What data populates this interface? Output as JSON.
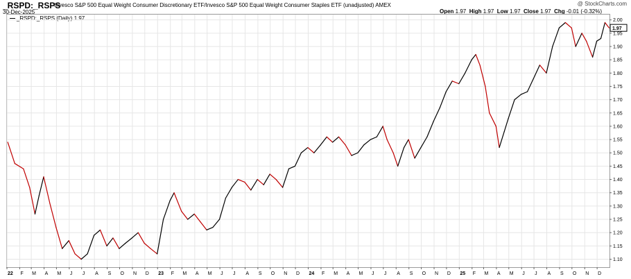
{
  "header": {
    "symbol": "_RSPD:_RSPS",
    "description": "Invesco S&P 500 Equal Weight Consumer Discretionary ETF/Invesco S&P 500 Equal Weight Consumer Staples ETF (unadjusted)  AMEX",
    "date": "30-Dec-2025",
    "watermark": "@ StockCharts.com",
    "open_label": "Open",
    "open": "1.97",
    "high_label": "High",
    "high": "1.97",
    "low_label": "Low",
    "low": "1.97",
    "close_label": "Close",
    "close": "1.97",
    "chg_label": "Chg",
    "chg": "-0.01 (-0.32%)"
  },
  "legend": {
    "text": "_RSPD:_RSPS (Daily) 1.97"
  },
  "chart_data": {
    "type": "line",
    "series": [
      {
        "name": "_RSPD:_RSPS (Daily)",
        "points": [
          [
            "2022-01-03",
            1.54
          ],
          [
            "2022-01-20",
            1.46
          ],
          [
            "2022-02-10",
            1.44
          ],
          [
            "2022-02-25",
            1.37
          ],
          [
            "2022-03-10",
            1.27
          ],
          [
            "2022-03-20",
            1.34
          ],
          [
            "2022-03-31",
            1.41
          ],
          [
            "2022-04-15",
            1.31
          ],
          [
            "2022-04-30",
            1.22
          ],
          [
            "2022-05-15",
            1.14
          ],
          [
            "2022-05-31",
            1.17
          ],
          [
            "2022-06-15",
            1.12
          ],
          [
            "2022-06-30",
            1.1
          ],
          [
            "2022-07-15",
            1.12
          ],
          [
            "2022-07-31",
            1.19
          ],
          [
            "2022-08-15",
            1.21
          ],
          [
            "2022-08-31",
            1.15
          ],
          [
            "2022-09-15",
            1.18
          ],
          [
            "2022-09-30",
            1.14
          ],
          [
            "2022-10-15",
            1.16
          ],
          [
            "2022-10-31",
            1.18
          ],
          [
            "2022-11-15",
            1.2
          ],
          [
            "2022-11-30",
            1.16
          ],
          [
            "2022-12-15",
            1.14
          ],
          [
            "2022-12-31",
            1.12
          ],
          [
            "2023-01-15",
            1.25
          ],
          [
            "2023-01-31",
            1.32
          ],
          [
            "2023-02-10",
            1.35
          ],
          [
            "2023-02-28",
            1.28
          ],
          [
            "2023-03-15",
            1.25
          ],
          [
            "2023-03-31",
            1.27
          ],
          [
            "2023-04-15",
            1.24
          ],
          [
            "2023-04-30",
            1.21
          ],
          [
            "2023-05-15",
            1.22
          ],
          [
            "2023-05-31",
            1.25
          ],
          [
            "2023-06-15",
            1.33
          ],
          [
            "2023-06-30",
            1.37
          ],
          [
            "2023-07-15",
            1.4
          ],
          [
            "2023-07-31",
            1.39
          ],
          [
            "2023-08-15",
            1.36
          ],
          [
            "2023-08-31",
            1.4
          ],
          [
            "2023-09-15",
            1.38
          ],
          [
            "2023-09-30",
            1.42
          ],
          [
            "2023-10-15",
            1.4
          ],
          [
            "2023-10-31",
            1.37
          ],
          [
            "2023-11-15",
            1.44
          ],
          [
            "2023-11-30",
            1.45
          ],
          [
            "2023-12-15",
            1.5
          ],
          [
            "2023-12-31",
            1.52
          ],
          [
            "2024-01-15",
            1.5
          ],
          [
            "2024-01-31",
            1.53
          ],
          [
            "2024-02-15",
            1.56
          ],
          [
            "2024-02-29",
            1.54
          ],
          [
            "2024-03-15",
            1.56
          ],
          [
            "2024-03-31",
            1.53
          ],
          [
            "2024-04-15",
            1.49
          ],
          [
            "2024-04-30",
            1.5
          ],
          [
            "2024-05-15",
            1.53
          ],
          [
            "2024-05-31",
            1.55
          ],
          [
            "2024-06-15",
            1.56
          ],
          [
            "2024-06-30",
            1.6
          ],
          [
            "2024-07-10",
            1.55
          ],
          [
            "2024-07-25",
            1.5
          ],
          [
            "2024-08-05",
            1.45
          ],
          [
            "2024-08-20",
            1.52
          ],
          [
            "2024-08-31",
            1.55
          ],
          [
            "2024-09-15",
            1.48
          ],
          [
            "2024-09-30",
            1.52
          ],
          [
            "2024-10-15",
            1.56
          ],
          [
            "2024-10-31",
            1.62
          ],
          [
            "2024-11-15",
            1.67
          ],
          [
            "2024-11-30",
            1.73
          ],
          [
            "2024-12-15",
            1.77
          ],
          [
            "2024-12-31",
            1.76
          ],
          [
            "2025-01-15",
            1.8
          ],
          [
            "2025-01-31",
            1.85
          ],
          [
            "2025-02-10",
            1.87
          ],
          [
            "2025-02-20",
            1.83
          ],
          [
            "2025-03-05",
            1.75
          ],
          [
            "2025-03-15",
            1.65
          ],
          [
            "2025-03-31",
            1.6
          ],
          [
            "2025-04-08",
            1.52
          ],
          [
            "2025-04-20",
            1.58
          ],
          [
            "2025-04-30",
            1.63
          ],
          [
            "2025-05-15",
            1.7
          ],
          [
            "2025-05-31",
            1.72
          ],
          [
            "2025-06-15",
            1.73
          ],
          [
            "2025-06-30",
            1.78
          ],
          [
            "2025-07-15",
            1.83
          ],
          [
            "2025-07-31",
            1.8
          ],
          [
            "2025-08-15",
            1.9
          ],
          [
            "2025-08-31",
            1.97
          ],
          [
            "2025-09-15",
            1.99
          ],
          [
            "2025-09-30",
            1.97
          ],
          [
            "2025-10-10",
            1.9
          ],
          [
            "2025-10-25",
            1.95
          ],
          [
            "2025-11-05",
            1.92
          ],
          [
            "2025-11-20",
            1.86
          ],
          [
            "2025-11-30",
            1.92
          ],
          [
            "2025-12-10",
            1.93
          ],
          [
            "2025-12-20",
            1.99
          ],
          [
            "2025-12-30",
            1.97
          ]
        ]
      }
    ],
    "y_ticks": [
      "1.10",
      "1.15",
      "1.20",
      "1.25",
      "1.30",
      "1.35",
      "1.40",
      "1.45",
      "1.50",
      "1.55",
      "1.60",
      "1.65",
      "1.70",
      "1.75",
      "1.80",
      "1.85",
      "1.90",
      "1.95",
      "2.00"
    ],
    "ylim": [
      1.07,
      2.02
    ],
    "x_ticks": [
      {
        "label": "22",
        "date": "2022-01-01",
        "bold": true
      },
      {
        "label": "F",
        "date": "2022-02-01"
      },
      {
        "label": "M",
        "date": "2022-03-01"
      },
      {
        "label": "A",
        "date": "2022-04-01"
      },
      {
        "label": "M",
        "date": "2022-05-01"
      },
      {
        "label": "J",
        "date": "2022-06-01"
      },
      {
        "label": "J",
        "date": "2022-07-01"
      },
      {
        "label": "A",
        "date": "2022-08-01"
      },
      {
        "label": "S",
        "date": "2022-09-01"
      },
      {
        "label": "O",
        "date": "2022-10-01"
      },
      {
        "label": "N",
        "date": "2022-11-01"
      },
      {
        "label": "D",
        "date": "2022-12-01"
      },
      {
        "label": "23",
        "date": "2023-01-01",
        "bold": true
      },
      {
        "label": "F",
        "date": "2023-02-01"
      },
      {
        "label": "M",
        "date": "2023-03-01"
      },
      {
        "label": "A",
        "date": "2023-04-01"
      },
      {
        "label": "M",
        "date": "2023-05-01"
      },
      {
        "label": "J",
        "date": "2023-06-01"
      },
      {
        "label": "J",
        "date": "2023-07-01"
      },
      {
        "label": "A",
        "date": "2023-08-01"
      },
      {
        "label": "S",
        "date": "2023-09-01"
      },
      {
        "label": "O",
        "date": "2023-10-01"
      },
      {
        "label": "N",
        "date": "2023-11-01"
      },
      {
        "label": "D",
        "date": "2023-12-01"
      },
      {
        "label": "24",
        "date": "2024-01-01",
        "bold": true
      },
      {
        "label": "F",
        "date": "2024-02-01"
      },
      {
        "label": "M",
        "date": "2024-03-01"
      },
      {
        "label": "A",
        "date": "2024-04-01"
      },
      {
        "label": "M",
        "date": "2024-05-01"
      },
      {
        "label": "J",
        "date": "2024-06-01"
      },
      {
        "label": "J",
        "date": "2024-07-01"
      },
      {
        "label": "A",
        "date": "2024-08-01"
      },
      {
        "label": "S",
        "date": "2024-09-01"
      },
      {
        "label": "O",
        "date": "2024-10-01"
      },
      {
        "label": "N",
        "date": "2024-11-01"
      },
      {
        "label": "D",
        "date": "2024-12-01"
      },
      {
        "label": "25",
        "date": "2025-01-01",
        "bold": true
      },
      {
        "label": "F",
        "date": "2025-02-01"
      },
      {
        "label": "M",
        "date": "2025-03-01"
      },
      {
        "label": "A",
        "date": "2025-04-01"
      },
      {
        "label": "M",
        "date": "2025-05-01"
      },
      {
        "label": "J",
        "date": "2025-06-01"
      },
      {
        "label": "J",
        "date": "2025-07-01"
      },
      {
        "label": "A",
        "date": "2025-08-01"
      },
      {
        "label": "S",
        "date": "2025-09-01"
      },
      {
        "label": "O",
        "date": "2025-10-01"
      },
      {
        "label": "N",
        "date": "2025-11-01"
      },
      {
        "label": "D",
        "date": "2025-12-01"
      }
    ],
    "xlim": [
      "2022-01-01",
      "2025-12-31"
    ],
    "last_value_label": "1.97",
    "colors": {
      "up": "#000000",
      "down": "#c00000",
      "grid": "#e6e6e6",
      "border": "#9a9a9a"
    },
    "grid": true
  }
}
